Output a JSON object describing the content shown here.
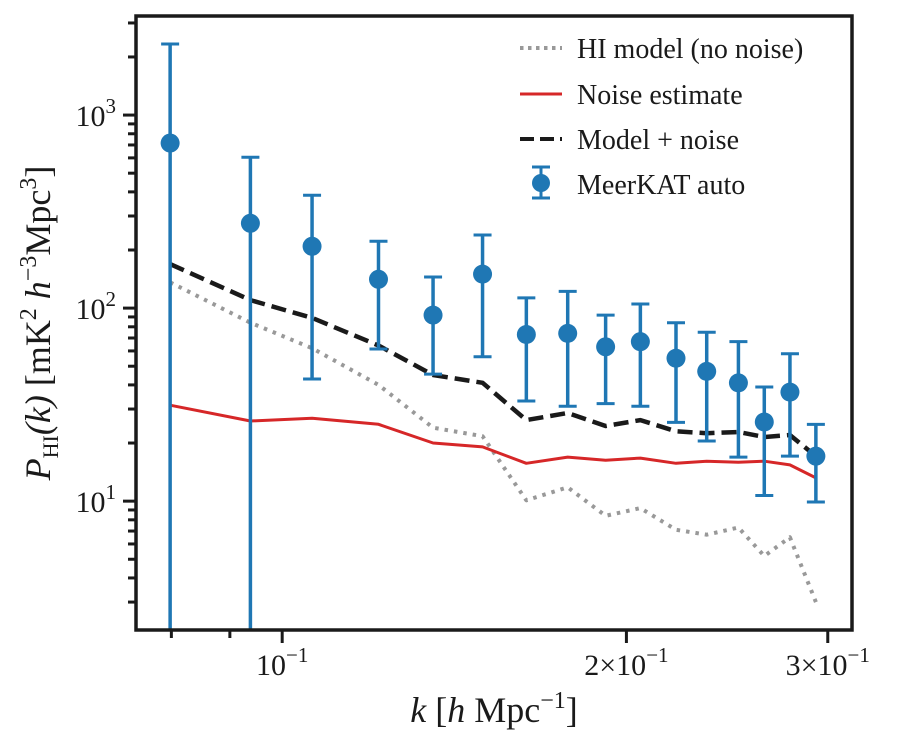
{
  "chart_data": {
    "type": "line",
    "title": "",
    "xlabel": {
      "italic": "k",
      "text": " [",
      "h": "h",
      "unit": " Mpc",
      "sup": "−1",
      "close": "]"
    },
    "ylabel": {
      "P": "P",
      "sub": "HI",
      "k": "(k)",
      "unit_pre": " [mK",
      "sup1": "2",
      "h": " h",
      "sup2": "−3",
      "unit_post": "Mpc",
      "sup3": "3",
      "close": "]"
    },
    "xscale": "log",
    "yscale": "log",
    "xlim": [
      0.0745,
      0.315
    ],
    "ylim": [
      2.15,
      3260
    ],
    "grid": false,
    "legend_position": "top-right",
    "x_ticks": [
      {
        "value": 0.1,
        "base": "10",
        "exp": "−1",
        "prefix": ""
      },
      {
        "value": 0.2,
        "base": "10",
        "exp": "−1",
        "prefix": "2×"
      },
      {
        "value": 0.3,
        "base": "10",
        "exp": "−1",
        "prefix": "3×"
      }
    ],
    "y_ticks": [
      {
        "value": 10,
        "base": "10",
        "exp": "1"
      },
      {
        "value": 100,
        "base": "10",
        "exp": "2"
      },
      {
        "value": 1000,
        "base": "10",
        "exp": "3"
      }
    ],
    "x": [
      0.0798,
      0.0938,
      0.1062,
      0.1214,
      0.1355,
      0.1497,
      0.1635,
      0.1777,
      0.1918,
      0.2057,
      0.221,
      0.2351,
      0.2506,
      0.264,
      0.278,
      0.2929
    ],
    "series": [
      {
        "name": "HI model (no noise)",
        "style": "dotted",
        "color": "#999999",
        "values": [
          136,
          84,
          62,
          40,
          24,
          21.7,
          10.1,
          11.8,
          8.4,
          9.2,
          7.1,
          6.7,
          7.3,
          5.2,
          6.5,
          3.0
        ]
      },
      {
        "name": "Noise estimate",
        "style": "solid",
        "color": "#d62728",
        "values": [
          31.4,
          26.0,
          26.9,
          25.0,
          20.0,
          19.1,
          15.7,
          16.9,
          16.3,
          16.7,
          15.7,
          16.1,
          15.9,
          16.1,
          15.4,
          13.2
        ]
      },
      {
        "name": "Model + noise",
        "style": "dashed",
        "color": "#1a1a1a",
        "values": [
          169,
          110,
          89,
          64,
          45,
          41,
          26.3,
          28.6,
          24.5,
          26.3,
          23.0,
          22.5,
          22.8,
          21.5,
          22.0,
          17.1
        ]
      },
      {
        "name": "MeerKAT auto",
        "style": "errorbar",
        "color": "#1f77b4",
        "values": [
          716,
          275,
          209,
          141,
          92,
          150,
          73,
          74,
          63,
          67,
          55,
          47,
          41,
          25.7,
          36.7,
          17.1
        ],
        "err_upper": [
          2335,
          605,
          384,
          222,
          145,
          239,
          113,
          122,
          92,
          105,
          84,
          75,
          67,
          39,
          58,
          25
        ],
        "err_lower": [
          0.5,
          0.5,
          42.9,
          61.4,
          45.5,
          56,
          33,
          31,
          32,
          31,
          25.6,
          20.5,
          16.9,
          10.7,
          17.1,
          9.9
        ]
      }
    ]
  }
}
